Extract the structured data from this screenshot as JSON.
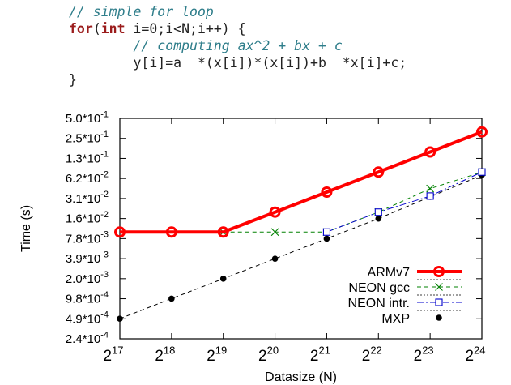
{
  "code": {
    "line1": "// simple for loop",
    "line2_kw1": "for",
    "line2_paren": "(",
    "line2_kw2": "int",
    "line2_rest": " i=0;i<N;i++) {",
    "line3": "// computing ax^2 + bx + c",
    "line4": "y[i]=a  *(x[i])*(x[i])+b  *x[i]+c;",
    "line5": "}"
  },
  "chart_data": {
    "type": "line",
    "xlabel": "Datasize (N)",
    "ylabel": "Time (s)",
    "x_tick_labels": [
      {
        "base": "2",
        "exp": "17"
      },
      {
        "base": "2",
        "exp": "18"
      },
      {
        "base": "2",
        "exp": "19"
      },
      {
        "base": "2",
        "exp": "20"
      },
      {
        "base": "2",
        "exp": "21"
      },
      {
        "base": "2",
        "exp": "22"
      },
      {
        "base": "2",
        "exp": "23"
      },
      {
        "base": "2",
        "exp": "24"
      }
    ],
    "y_tick_labels": [
      {
        "mant": "5.0*10",
        "exp": "-1"
      },
      {
        "mant": "2.5*10",
        "exp": "-1"
      },
      {
        "mant": "1.3*10",
        "exp": "-1"
      },
      {
        "mant": "6.2*10",
        "exp": "-2"
      },
      {
        "mant": "3.1*10",
        "exp": "-2"
      },
      {
        "mant": "1.6*10",
        "exp": "-2"
      },
      {
        "mant": "7.8*10",
        "exp": "-3"
      },
      {
        "mant": "3.9*10",
        "exp": "-3"
      },
      {
        "mant": "2.0*10",
        "exp": "-3"
      },
      {
        "mant": "9.8*10",
        "exp": "-4"
      },
      {
        "mant": "4.9*10",
        "exp": "-4"
      },
      {
        "mant": "2.4*10",
        "exp": "-4"
      }
    ],
    "x": [
      131072,
      262144,
      524288,
      1048576,
      2097152,
      4194304,
      8388608,
      16777216
    ],
    "xscale": "log2",
    "yscale": "log2",
    "xlim": [
      131072,
      16777216
    ],
    "ylim": [
      0.000244,
      0.5
    ],
    "grid": false,
    "legend_position": "bottom-right",
    "series": [
      {
        "name": "ARMv7",
        "color": "#ff0000",
        "style": "solid-thick",
        "marker": "open-circle",
        "x": [
          131072,
          262144,
          524288,
          1048576,
          2097152,
          4194304,
          8388608,
          16777216
        ],
        "values": [
          0.0098,
          0.0098,
          0.0098,
          0.0195,
          0.039,
          0.078,
          0.156,
          0.3125
        ]
      },
      {
        "name": "NEON gcc",
        "color": "#008000",
        "style": "dashed",
        "marker": "x",
        "x": [
          524288,
          1048576,
          2097152,
          4194304,
          8388608,
          16777216
        ],
        "values": [
          0.0098,
          0.0098,
          0.0098,
          0.0195,
          0.044,
          0.0781
        ]
      },
      {
        "name": "NEON intr.",
        "color": "#0000cc",
        "style": "dash-dot",
        "marker": "open-square",
        "x": [
          2097152,
          4194304,
          8388608,
          16777216
        ],
        "values": [
          0.0098,
          0.0195,
          0.034,
          0.0781
        ]
      },
      {
        "name": "MXP",
        "color": "#000000",
        "style": "dashed-thin",
        "marker": "filled-circle",
        "x": [
          131072,
          262144,
          524288,
          1048576,
          2097152,
          4194304,
          8388608,
          16777216
        ],
        "values": [
          0.00049,
          0.00098,
          0.00195,
          0.0039,
          0.0078,
          0.0156,
          0.0331,
          0.0704
        ]
      }
    ]
  }
}
